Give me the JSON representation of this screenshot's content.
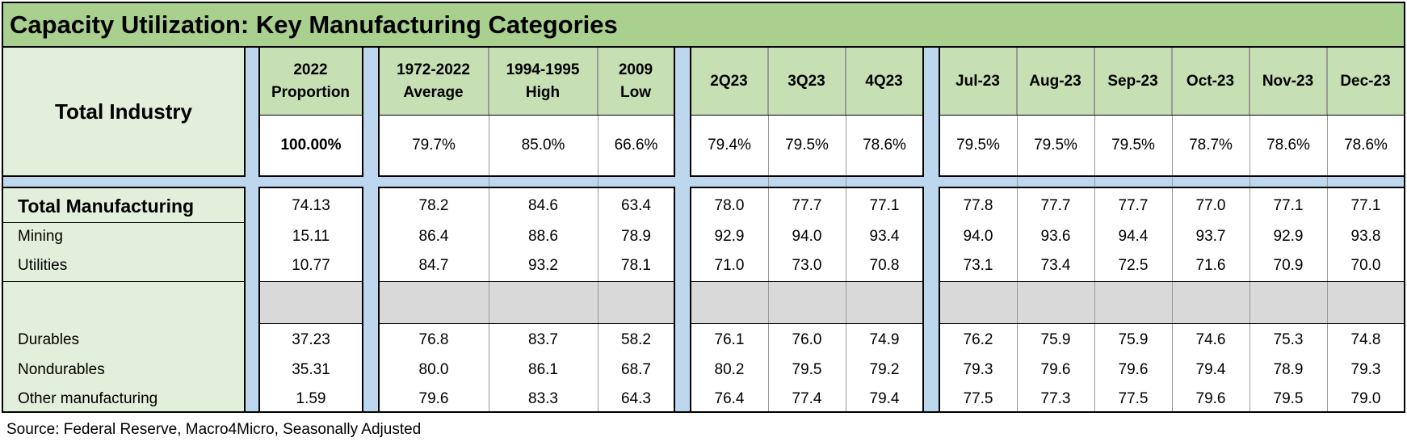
{
  "title": "Capacity Utilization: Key Manufacturing Categories",
  "total_industry_label": "Total Industry",
  "columns": [
    {
      "header": "2022\nProportion"
    },
    {
      "header": "1972-2022\nAverage"
    },
    {
      "header": "1994-1995\nHigh"
    },
    {
      "header": "2009\nLow"
    },
    {
      "header": "2Q23"
    },
    {
      "header": "3Q23"
    },
    {
      "header": "4Q23"
    },
    {
      "header": "Jul-23"
    },
    {
      "header": "Aug-23"
    },
    {
      "header": "Sep-23"
    },
    {
      "header": "Oct-23"
    },
    {
      "header": "Nov-23"
    },
    {
      "header": "Dec-23"
    }
  ],
  "total_industry_values": [
    "100.00%",
    "79.7%",
    "85.0%",
    "66.6%",
    "79.4%",
    "79.5%",
    "78.6%",
    "79.5%",
    "79.5%",
    "79.5%",
    "78.7%",
    "78.6%",
    "78.6%"
  ],
  "rows": [
    {
      "label": "Total Manufacturing",
      "bold": true,
      "values": [
        "74.13",
        "78.2",
        "84.6",
        "63.4",
        "78.0",
        "77.7",
        "77.1",
        "77.8",
        "77.7",
        "77.7",
        "77.0",
        "77.1",
        "77.1"
      ]
    },
    {
      "label": "Mining",
      "bold": false,
      "values": [
        "15.11",
        "86.4",
        "88.6",
        "78.9",
        "92.9",
        "94.0",
        "93.4",
        "94.0",
        "93.6",
        "94.4",
        "93.7",
        "92.9",
        "93.8"
      ]
    },
    {
      "label": "Utilities",
      "bold": false,
      "values": [
        "10.77",
        "84.7",
        "93.2",
        "78.1",
        "71.0",
        "73.0",
        "70.8",
        "73.1",
        "73.4",
        "72.5",
        "71.6",
        "70.9",
        "70.0"
      ]
    },
    {
      "label": "Durables",
      "bold": false,
      "values": [
        "37.23",
        "76.8",
        "83.7",
        "58.2",
        "76.1",
        "76.0",
        "74.9",
        "76.2",
        "75.9",
        "75.9",
        "74.6",
        "75.3",
        "74.8"
      ]
    },
    {
      "label": "Nondurables",
      "bold": false,
      "values": [
        "35.31",
        "80.0",
        "86.1",
        "68.7",
        "80.2",
        "79.5",
        "79.2",
        "79.3",
        "79.6",
        "79.6",
        "79.4",
        "78.9",
        "79.3"
      ]
    },
    {
      "label": "Other manufacturing",
      "bold": false,
      "values": [
        "1.59",
        "79.6",
        "83.3",
        "64.3",
        "76.4",
        "77.4",
        "79.4",
        "77.5",
        "77.3",
        "77.5",
        "79.6",
        "79.5",
        "79.0"
      ]
    }
  ],
  "source": "Source: Federal Reserve, Macro4Micro, Seasonally Adjusted",
  "colors": {
    "title_bg": "#a9d08e",
    "header_bg": "#c6e0b4",
    "label_bg": "#e2efda",
    "separator": "#bdd7ee",
    "blank_gray": "#d9d9d9"
  }
}
